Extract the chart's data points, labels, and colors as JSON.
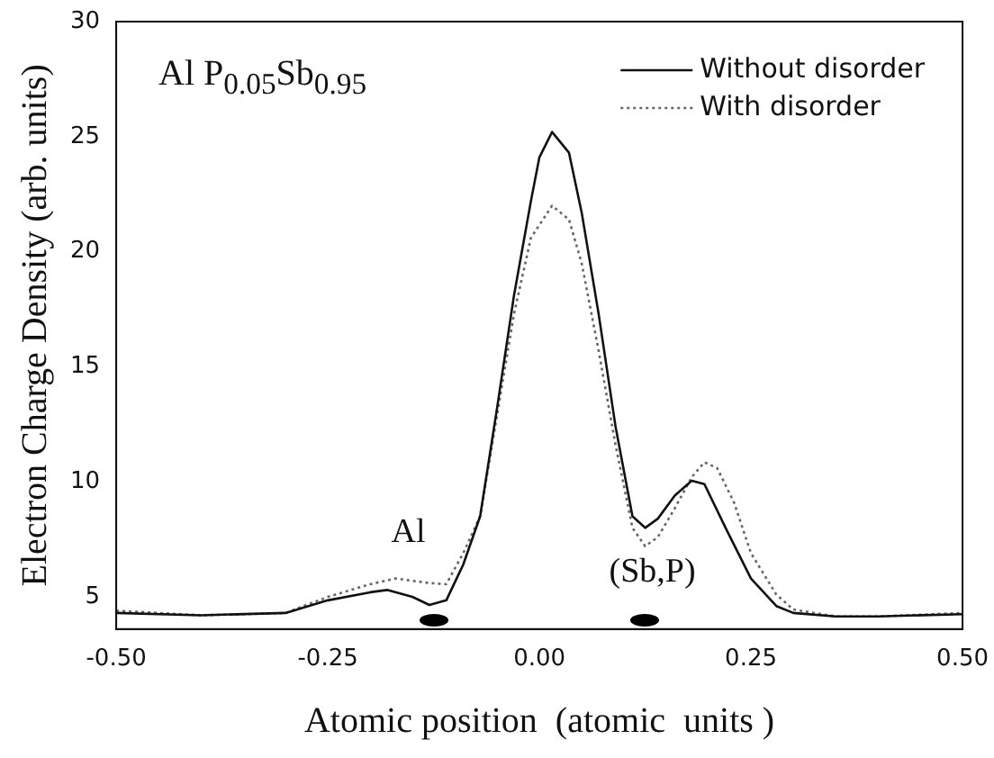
{
  "chart_data": {
    "type": "line",
    "xlabel": "Atomic position  (atomic  units )",
    "ylabel": "Electron Charge Density (arb. units)",
    "xlim": [
      -0.5,
      0.5
    ],
    "xticks": [
      {
        "value": -0.5,
        "label": "-0.50"
      },
      {
        "value": -0.25,
        "label": "-0.25"
      },
      {
        "value": 0,
        "label": "0.00"
      },
      {
        "value": 0.25,
        "label": "0.25"
      },
      {
        "value": 0.5,
        "label": "0.50"
      }
    ],
    "ylim": [
      3.6,
      30
    ],
    "yticks": [
      5,
      10,
      15,
      20,
      25,
      30
    ],
    "grid": false,
    "legend": "top right",
    "marker": "none",
    "series": [
      {
        "name": "Without disorder",
        "color": "#111111",
        "line_style": "solid",
        "x": [
          -0.5,
          -0.4,
          -0.3,
          -0.25,
          -0.2,
          -0.18,
          -0.15,
          -0.13,
          -0.11,
          -0.09,
          -0.07,
          -0.05,
          -0.03,
          -0.01,
          0,
          0.015,
          0.035,
          0.05,
          0.07,
          0.09,
          0.11,
          0.125,
          0.14,
          0.16,
          0.18,
          0.195,
          0.22,
          0.25,
          0.28,
          0.3,
          0.35,
          0.4,
          0.5
        ],
        "values": [
          4.3,
          4.2,
          4.3,
          4.85,
          5.2,
          5.3,
          5.0,
          4.65,
          4.85,
          6.4,
          8.5,
          13.2,
          18.1,
          22.2,
          24.1,
          25.2,
          24.3,
          21.7,
          17.3,
          12.4,
          8.5,
          8.0,
          8.4,
          9.4,
          10.05,
          9.9,
          8.0,
          5.8,
          4.6,
          4.3,
          4.15,
          4.15,
          4.25
        ]
      },
      {
        "name": "With disorder",
        "color": "#666666",
        "line_style": "dotted",
        "x": [
          -0.5,
          -0.4,
          -0.3,
          -0.25,
          -0.2,
          -0.17,
          -0.13,
          -0.11,
          -0.09,
          -0.07,
          -0.05,
          -0.03,
          -0.01,
          0.015,
          0.035,
          0.05,
          0.07,
          0.09,
          0.11,
          0.125,
          0.14,
          0.16,
          0.18,
          0.195,
          0.21,
          0.23,
          0.25,
          0.28,
          0.3,
          0.35,
          0.4,
          0.5
        ],
        "values": [
          4.4,
          4.2,
          4.3,
          5.0,
          5.55,
          5.8,
          5.6,
          5.55,
          6.9,
          8.5,
          12.9,
          17.3,
          20.6,
          22.0,
          21.4,
          19.5,
          15.7,
          11.6,
          8.0,
          7.2,
          7.6,
          8.85,
          10.2,
          10.85,
          10.6,
          9.1,
          6.9,
          5.1,
          4.45,
          4.15,
          4.15,
          4.3
        ]
      }
    ],
    "annotations": [
      "Al P$_{0.05}$Sb$_{0.95}$",
      "Al",
      "(Sb,P)"
    ]
  }
}
